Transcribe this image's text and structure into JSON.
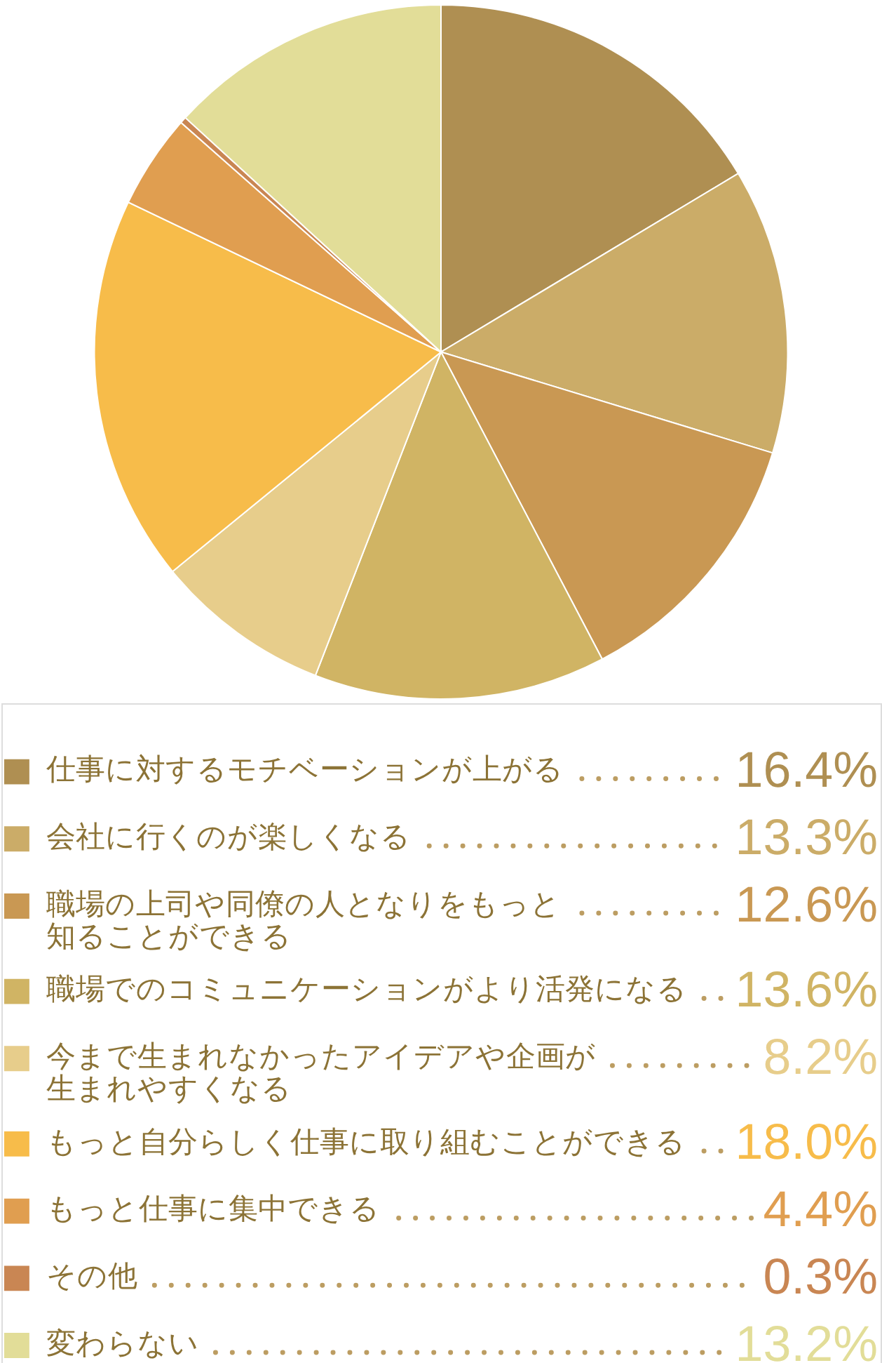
{
  "chart_data": {
    "type": "pie",
    "categories": [
      "仕事に対するモチベーションが上がる",
      "会社に行くのが楽しくなる",
      "職場の上司や同僚の人となりをもっと知ることができる",
      "職場でのコミュニケーションがより活発になる",
      "今まで生まれなかったアイデアや企画が生まれやすくなる",
      "もっと自分らしく仕事に取り組むことができる",
      "もっと仕事に集中できる",
      "その他",
      "変わらない"
    ],
    "values": [
      16.4,
      13.3,
      12.6,
      13.6,
      8.2,
      18.0,
      4.4,
      0.3,
      13.2
    ],
    "colors": [
      "#af8f52",
      "#cbac68",
      "#c99853",
      "#d0b464",
      "#e7cd8b",
      "#f7bc4a",
      "#e09e50",
      "#c98653",
      "#e2dd98"
    ],
    "value_labels": [
      "16.4%",
      "13.3%",
      "12.6%",
      "13.6%",
      "8.2%",
      "18.0%",
      "4.4%",
      "0.3%",
      "13.2%"
    ],
    "legend": "bottom"
  }
}
